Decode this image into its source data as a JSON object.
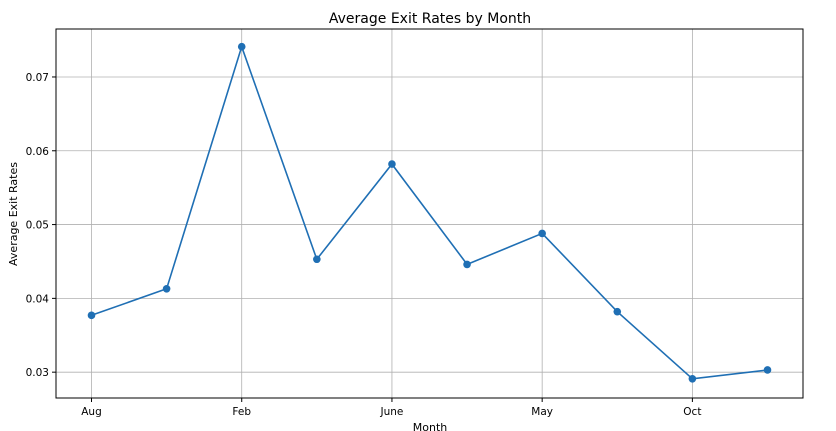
{
  "chart_data": {
    "type": "line",
    "title": "Average Exit Rates by Month",
    "xlabel": "Month",
    "ylabel": "Average Exit Rates",
    "categories": [
      "Aug",
      "",
      "Feb",
      "",
      "June",
      "",
      "May",
      "",
      "Oct",
      ""
    ],
    "x_tick_labels": [
      "Aug",
      "Feb",
      "June",
      "May",
      "Oct"
    ],
    "y_ticks": [
      0.03,
      0.04,
      0.05,
      0.06,
      0.07
    ],
    "y_tick_labels": [
      "0.03",
      "0.04",
      "0.05",
      "0.06",
      "0.07"
    ],
    "ylim": [
      0.0265,
      0.0765
    ],
    "grid": true,
    "series": [
      {
        "values": [
          0.0377,
          0.0413,
          0.0741,
          0.0453,
          0.0582,
          0.0446,
          0.0488,
          0.0382,
          0.0291,
          0.0303
        ],
        "color": "#1f6fb4"
      }
    ]
  }
}
